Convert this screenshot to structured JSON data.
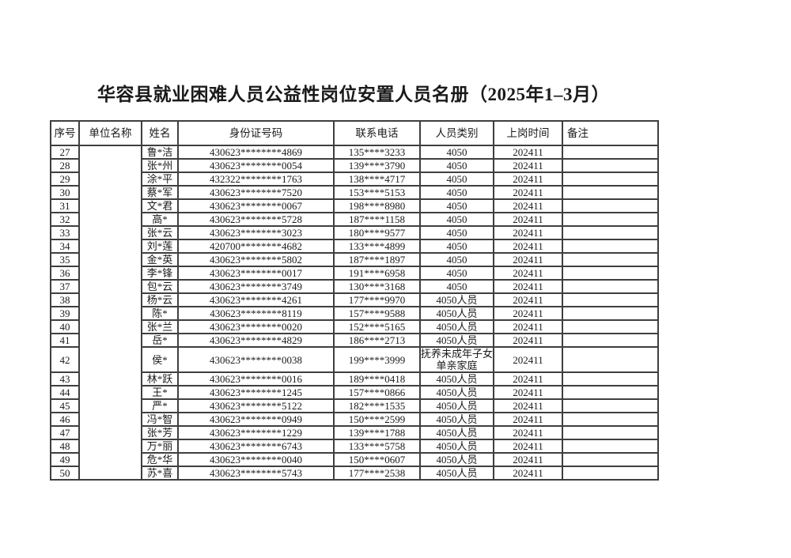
{
  "page": {
    "title": "华容县就业困难人员公益性岗位安置人员名册（2025年1–3月）"
  },
  "colors": {
    "background": "#ffffff",
    "table_border": "#3f3f3f",
    "text": "#1a1a1a"
  },
  "table": {
    "headers": [
      "序号",
      "单位名称",
      "姓名",
      "身份证号码",
      "联系电话",
      "人员类别",
      "上岗时间",
      "备注"
    ],
    "rows": [
      {
        "no": "27",
        "unit": "",
        "name": "鲁*洁",
        "id": "430623********4869",
        "phone": "135****3233",
        "category": "4050",
        "start": "202411",
        "remark": ""
      },
      {
        "no": "28",
        "unit": "",
        "name": "张*州",
        "id": "430623********0054",
        "phone": "139****3790",
        "category": "4050",
        "start": "202411",
        "remark": ""
      },
      {
        "no": "29",
        "unit": "",
        "name": "涂*平",
        "id": "432322********1763",
        "phone": "138****4717",
        "category": "4050",
        "start": "202411",
        "remark": ""
      },
      {
        "no": "30",
        "unit": "",
        "name": "蔡*军",
        "id": "430623********7520",
        "phone": "153****5153",
        "category": "4050",
        "start": "202411",
        "remark": ""
      },
      {
        "no": "31",
        "unit": "",
        "name": "文*君",
        "id": "430623********0067",
        "phone": "198****8980",
        "category": "4050",
        "start": "202411",
        "remark": ""
      },
      {
        "no": "32",
        "unit": "",
        "name": "高*",
        "id": "430623********5728",
        "phone": "187****1158",
        "category": "4050",
        "start": "202411",
        "remark": ""
      },
      {
        "no": "33",
        "unit": "",
        "name": "张*云",
        "id": "430623********3023",
        "phone": "180****9577",
        "category": "4050",
        "start": "202411",
        "remark": ""
      },
      {
        "no": "34",
        "unit": "",
        "name": "刘*莲",
        "id": "420700********4682",
        "phone": "133****4899",
        "category": "4050",
        "start": "202411",
        "remark": ""
      },
      {
        "no": "35",
        "unit": "",
        "name": "金*英",
        "id": "430623********5802",
        "phone": "187****1897",
        "category": "4050",
        "start": "202411",
        "remark": ""
      },
      {
        "no": "36",
        "unit": "",
        "name": "李*锋",
        "id": "430623********0017",
        "phone": "191****6958",
        "category": "4050",
        "start": "202411",
        "remark": ""
      },
      {
        "no": "37",
        "unit": "",
        "name": "包*云",
        "id": "430623********3749",
        "phone": "130****3168",
        "category": "4050",
        "start": "202411",
        "remark": ""
      },
      {
        "no": "38",
        "unit": "",
        "name": "杨*云",
        "id": "430623********4261",
        "phone": "177****9970",
        "category": "4050人员",
        "start": "202411",
        "remark": ""
      },
      {
        "no": "39",
        "unit": "",
        "name": "陈*",
        "id": "430623********8119",
        "phone": "157****9588",
        "category": "4050人员",
        "start": "202411",
        "remark": ""
      },
      {
        "no": "40",
        "unit": "",
        "name": "张*兰",
        "id": "430623********0020",
        "phone": "152****5165",
        "category": "4050人员",
        "start": "202411",
        "remark": ""
      },
      {
        "no": "41",
        "unit": "",
        "name": "岳*",
        "id": "430623********4829",
        "phone": "186****2713",
        "category": "4050人员",
        "start": "202411",
        "remark": ""
      },
      {
        "no": "42",
        "unit": "",
        "name": "侯*",
        "id": "430623********0038",
        "phone": "199****3999",
        "category": "抚养未成年子女单亲家庭",
        "start": "202411",
        "remark": ""
      },
      {
        "no": "43",
        "unit": "",
        "name": "林*跃",
        "id": "430623********0016",
        "phone": "189****0418",
        "category": "4050人员",
        "start": "202411",
        "remark": ""
      },
      {
        "no": "44",
        "unit": "",
        "name": "王*",
        "id": "430623********1245",
        "phone": "157****0866",
        "category": "4050人员",
        "start": "202411",
        "remark": ""
      },
      {
        "no": "45",
        "unit": "",
        "name": "严*",
        "id": "430623********5122",
        "phone": "182****1535",
        "category": "4050人员",
        "start": "202411",
        "remark": ""
      },
      {
        "no": "46",
        "unit": "",
        "name": "冯*智",
        "id": "430623********0949",
        "phone": "150****2599",
        "category": "4050人员",
        "start": "202411",
        "remark": ""
      },
      {
        "no": "47",
        "unit": "",
        "name": "张*芳",
        "id": "430623********1229",
        "phone": "139****1788",
        "category": "4050人员",
        "start": "202411",
        "remark": ""
      },
      {
        "no": "48",
        "unit": "",
        "name": "万*丽",
        "id": "430623********6743",
        "phone": "133****5758",
        "category": "4050人员",
        "start": "202411",
        "remark": ""
      },
      {
        "no": "49",
        "unit": "",
        "name": "危*华",
        "id": "430623********0040",
        "phone": "150****0607",
        "category": "4050人员",
        "start": "202411",
        "remark": ""
      },
      {
        "no": "50",
        "unit": "",
        "name": "苏*喜",
        "id": "430623********5743",
        "phone": "177****2538",
        "category": "4050人员",
        "start": "202411",
        "remark": ""
      }
    ]
  }
}
